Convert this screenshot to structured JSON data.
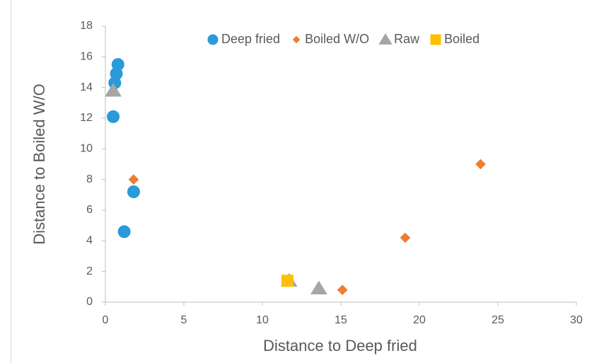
{
  "chart_data": {
    "type": "scatter",
    "xlabel": "Distance to Deep fried",
    "ylabel": "Distance to Boiled W/O",
    "xlim": [
      0,
      30
    ],
    "xticks": [
      0,
      5,
      10,
      15,
      20,
      25,
      30
    ],
    "ylim": [
      0,
      18
    ],
    "yticks": [
      0,
      2,
      4,
      6,
      8,
      10,
      12,
      14,
      16,
      18
    ],
    "grid": false,
    "legend": "top",
    "series": [
      {
        "name": "Deep fried",
        "color": "#2a9ad8",
        "marker": "circle",
        "x": [
          0.8,
          0.7,
          0.6,
          0.5,
          1.8,
          1.2
        ],
        "y": [
          15.5,
          14.9,
          14.3,
          12.1,
          7.2,
          4.6
        ]
      },
      {
        "name": "Boiled W/O",
        "color": "#ed7d31",
        "marker": "diamond",
        "x": [
          1.8,
          23.9,
          19.1,
          15.1
        ],
        "y": [
          8.0,
          9.0,
          4.2,
          0.8
        ]
      },
      {
        "name": "Raw",
        "color": "#a5a5a5",
        "marker": "triangle",
        "x": [
          0.5,
          11.7,
          13.6
        ],
        "y": [
          13.8,
          1.4,
          0.9
        ]
      },
      {
        "name": "Boiled",
        "color": "#ffc000",
        "marker": "square",
        "x": [
          11.6
        ],
        "y": [
          1.4
        ]
      }
    ]
  }
}
